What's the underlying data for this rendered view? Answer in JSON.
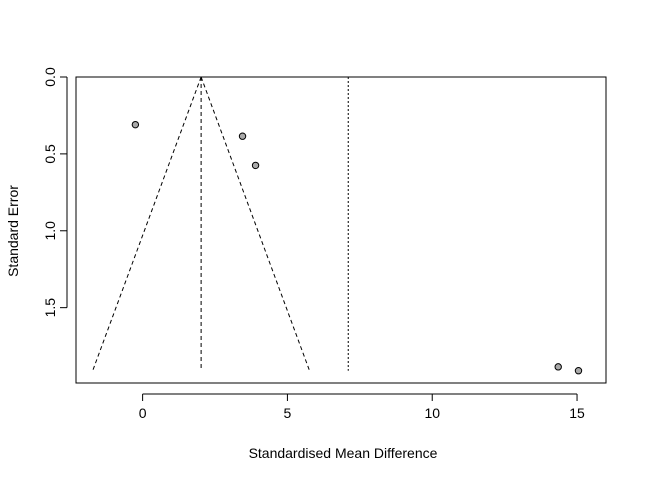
{
  "chart_data": {
    "type": "scatter",
    "title": "",
    "xlabel": "Standardised Mean Difference",
    "ylabel": "Standard Error",
    "xlim": [
      -2.3,
      16
    ],
    "ylim": [
      0,
      1.99
    ],
    "y_reversed": true,
    "grid": false,
    "x_ticks": [
      0,
      5,
      10,
      15
    ],
    "x_tick_labels": [
      "0",
      "5",
      "10",
      "15"
    ],
    "y_ticks": [
      0,
      0.5,
      1.0,
      1.5
    ],
    "y_tick_labels": [
      "0.0",
      "0.5",
      "1.0",
      "1.5"
    ],
    "points": [
      {
        "x": -0.25,
        "y": 0.31
      },
      {
        "x": 3.45,
        "y": 0.385
      },
      {
        "x": 3.9,
        "y": 0.575
      },
      {
        "x": 14.35,
        "y": 1.885
      },
      {
        "x": 15.05,
        "y": 1.91
      }
    ],
    "pooled_estimate": 2.02,
    "funnel_se_max": 1.91,
    "reference_line_x": 7.1,
    "colors": {
      "point_fill": "#a9a9a9",
      "point_stroke": "#000000",
      "lines": "#000000"
    }
  }
}
